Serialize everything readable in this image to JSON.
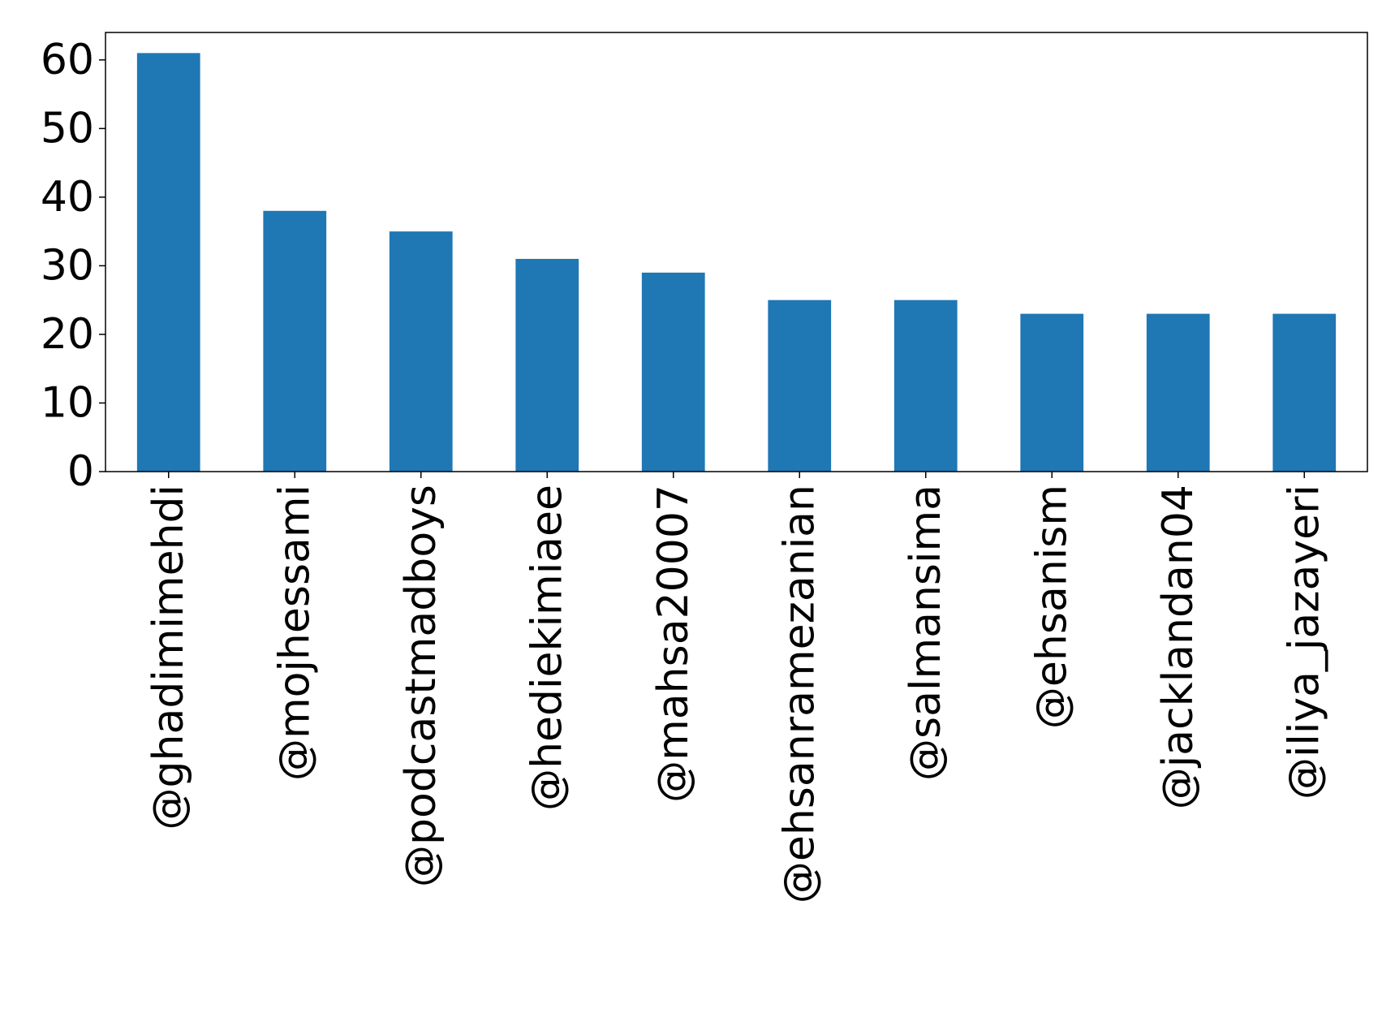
{
  "chart_data": {
    "type": "bar",
    "categories": [
      "@ghadimimehdi",
      "@mojhessami",
      "@podcastmadboys",
      "@hediekimiaee",
      "@mahsa20007",
      "@ehsanramezanian",
      "@salmansima",
      "@ehsanism",
      "@jacklandan04",
      "@iliya_jazayeri"
    ],
    "values": [
      61,
      38,
      35,
      31,
      29,
      25,
      25,
      23,
      23,
      23
    ],
    "title": "",
    "xlabel": "",
    "ylabel": "",
    "ylim": [
      0,
      64
    ],
    "yticks": [
      0,
      10,
      20,
      30,
      40,
      50,
      60
    ],
    "grid": false,
    "legend": "none",
    "bar_color": "#1f77b4"
  }
}
